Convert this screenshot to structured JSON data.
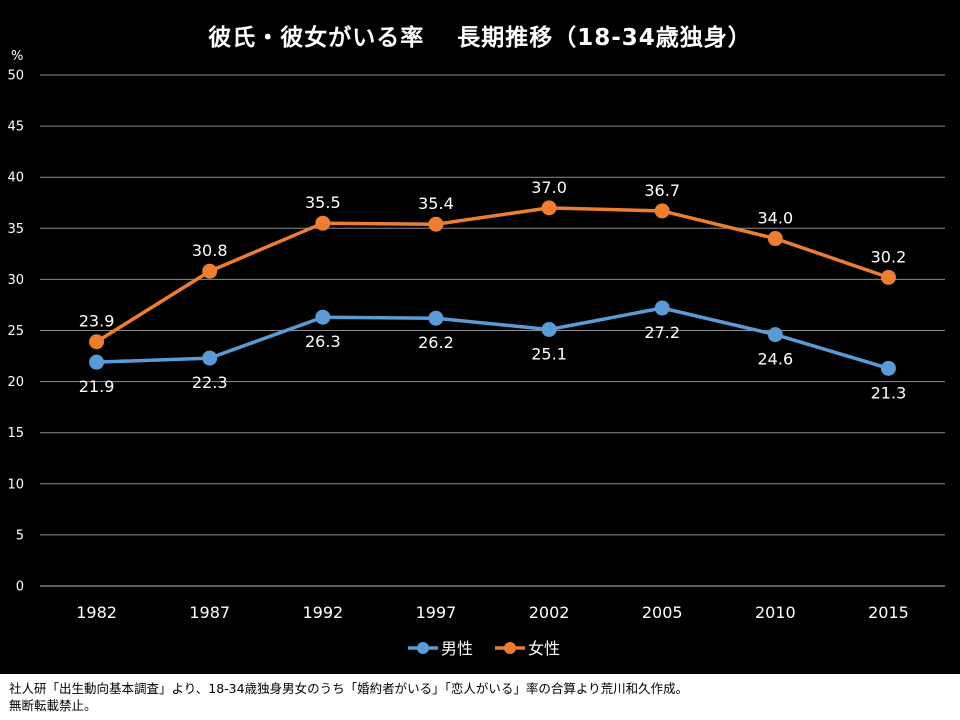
{
  "chart_data": {
    "type": "line",
    "title": "彼氏・彼女がいる率　 長期推移（18-34歳独身）",
    "ylabel": "%",
    "xlabel": "",
    "categories": [
      "1982",
      "1987",
      "1992",
      "1997",
      "2002",
      "2005",
      "2010",
      "2015"
    ],
    "ylim": [
      0,
      50
    ],
    "yticks": [
      0,
      5,
      10,
      15,
      20,
      25,
      30,
      35,
      40,
      45,
      50
    ],
    "grid": true,
    "legend_position": "bottom",
    "series": [
      {
        "name": "男性",
        "color": "#5b9bd5",
        "values": [
          21.9,
          22.3,
          26.3,
          26.2,
          25.1,
          27.2,
          24.6,
          21.3
        ],
        "labels": [
          "21.9",
          "22.3",
          "26.3",
          "26.2",
          "25.1",
          "27.2",
          "24.6",
          "21.3"
        ]
      },
      {
        "name": "女性",
        "color": "#ed7d31",
        "values": [
          23.9,
          30.8,
          35.5,
          35.4,
          37.0,
          36.7,
          34.0,
          30.2
        ],
        "labels": [
          "23.9",
          "30.8",
          "35.5",
          "35.4",
          "37.0",
          "36.7",
          "34.0",
          "30.2"
        ]
      }
    ]
  },
  "footnote": {
    "line1": "社人研「出生動向基本調査」より、18-34歳独身男女のうち「婚約者がいる」「恋人がいる」率の合算より荒川和久作成。",
    "line2": "無断転載禁止。"
  }
}
